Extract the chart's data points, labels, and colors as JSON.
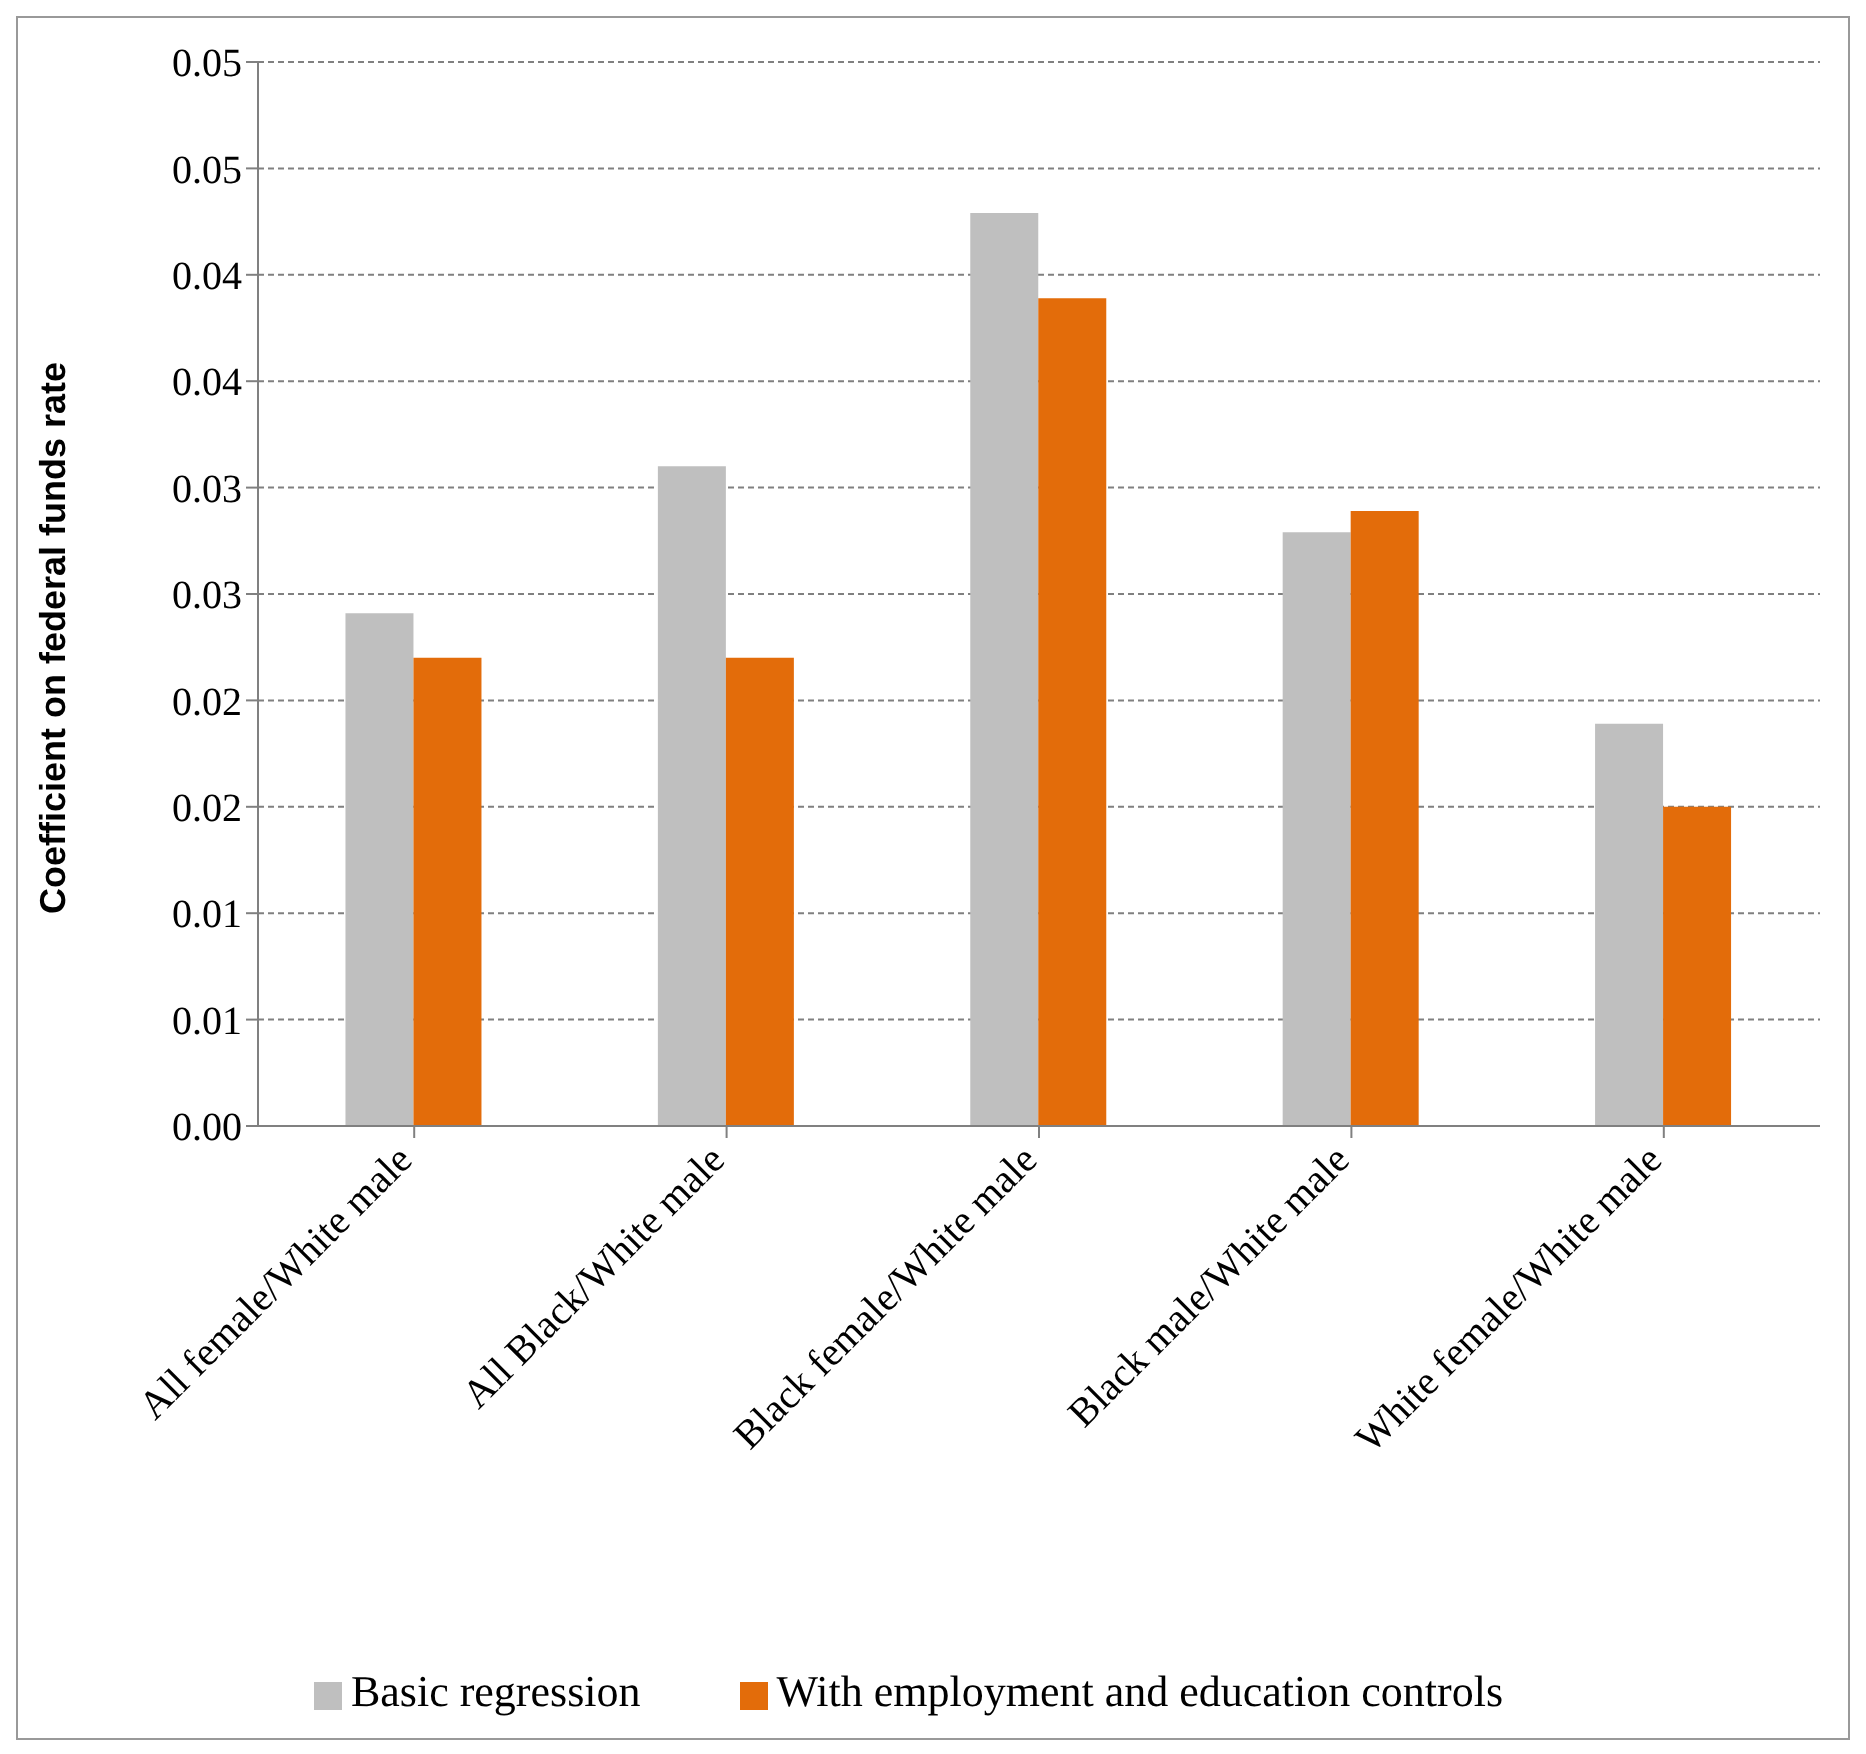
{
  "chart_data": {
    "type": "bar",
    "ylabel": "Coefficient on federal funds rate",
    "categories": [
      "All female/White male",
      "All Black/White male",
      "Black female/White male",
      "Black male/White male",
      "White female/White male"
    ],
    "series": [
      {
        "name": "Basic regression",
        "color": "#bfbfbf",
        "values": [
          0.0241,
          0.031,
          0.0429,
          0.0279,
          0.0189
        ]
      },
      {
        "name": "With employment and education controls",
        "color": "#e36c0a",
        "values": [
          0.022,
          0.022,
          0.0389,
          0.0289,
          0.015
        ]
      }
    ],
    "ylim": [
      0,
      0.05
    ],
    "yticks": [
      {
        "value": 0,
        "label": "0.00"
      },
      {
        "value": 0.005,
        "label": "0.01"
      },
      {
        "value": 0.01,
        "label": "0.01"
      },
      {
        "value": 0.015,
        "label": "0.02"
      },
      {
        "value": 0.02,
        "label": "0.02"
      },
      {
        "value": 0.025,
        "label": "0.03"
      },
      {
        "value": 0.03,
        "label": "0.03"
      },
      {
        "value": 0.035,
        "label": "0.04"
      },
      {
        "value": 0.04,
        "label": "0.04"
      },
      {
        "value": 0.045,
        "label": "0.05"
      },
      {
        "value": 0.05,
        "label": "0.05"
      }
    ],
    "grid": "y",
    "legend": "bottom"
  }
}
